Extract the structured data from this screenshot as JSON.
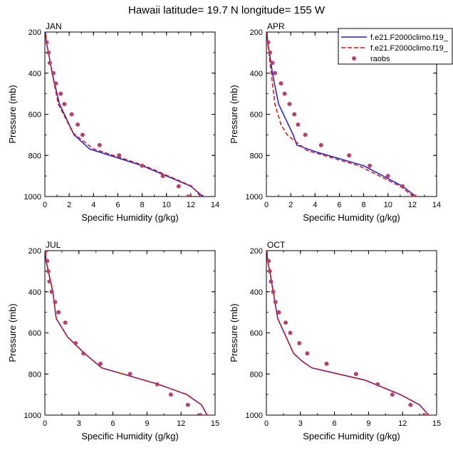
{
  "figure": {
    "title": "Hawaii  latitude= 19.7 N longitude= 155 W"
  },
  "chart_data": [
    {
      "type": "line",
      "title": "JAN",
      "xlabel": "Specific Humidity (g/kg)",
      "ylabel": "Pressure (mb)",
      "xlim": [
        0,
        14
      ],
      "ylim": [
        1000,
        200
      ],
      "y_reversed": true,
      "xticks": [
        "0",
        "2",
        "4",
        "6",
        "8",
        "10",
        "12",
        "14"
      ],
      "yticks": [
        "200",
        "400",
        "600",
        "800",
        "1000"
      ],
      "series": [
        {
          "name": "f.e21.F2000climo.f19_",
          "style": "solid",
          "color": "#1f1fd6",
          "x": [
            13,
            12,
            8,
            4,
            3.7,
            2.4,
            1.2,
            0.6,
            0.3,
            0.12,
            0.05
          ],
          "y": [
            1000,
            950,
            850,
            775,
            770,
            700,
            550,
            400,
            300,
            250,
            200
          ]
        },
        {
          "name": "f.e21.F2000climo.f19_",
          "style": "dashed",
          "color": "#e01010",
          "x": [
            12.8,
            12.1,
            8.2,
            4.1,
            3.9,
            2.3,
            1.1,
            0.6,
            0.3,
            0.12,
            0.05
          ],
          "y": [
            1000,
            950,
            850,
            770,
            765,
            690,
            550,
            400,
            300,
            250,
            200
          ]
        },
        {
          "name": "raobs",
          "style": "markers",
          "color": "#b8426b",
          "x": [
            11.8,
            11,
            9.7,
            8,
            6.1,
            4.5,
            3.1,
            2.7,
            2.2,
            1.6,
            1.3,
            0.9,
            0.7,
            0.4,
            0.3,
            0.15
          ],
          "y": [
            1000,
            950,
            900,
            850,
            800,
            750,
            700,
            650,
            600,
            550,
            500,
            450,
            400,
            350,
            300,
            250
          ]
        }
      ]
    },
    {
      "type": "line",
      "title": "APR",
      "xlabel": "Specific Humidity (g/kg)",
      "ylabel": "Pressure (mb)",
      "xlim": [
        0,
        14
      ],
      "ylim": [
        1000,
        200
      ],
      "y_reversed": true,
      "xticks": [
        "0",
        "2",
        "4",
        "6",
        "8",
        "10",
        "12",
        "14"
      ],
      "yticks": [
        "200",
        "400",
        "600",
        "800",
        "1000"
      ],
      "series": [
        {
          "name": "f.e21.F2000climo.f19_",
          "style": "solid",
          "color": "#1f1fd6",
          "x": [
            12.3,
            11.2,
            8,
            4.2,
            2.5,
            2.2,
            1,
            0.5,
            0.25,
            0.1,
            0.05
          ],
          "y": [
            1000,
            950,
            850,
            785,
            750,
            700,
            550,
            400,
            300,
            250,
            200
          ]
        },
        {
          "name": "f.e21.F2000climo.f19_",
          "style": "dashed",
          "color": "#e01010",
          "x": [
            12.1,
            11,
            7.6,
            3.3,
            1.7,
            1.2,
            0.7,
            0.4,
            0.2,
            0.1,
            0.05
          ],
          "y": [
            1000,
            950,
            850,
            775,
            700,
            650,
            550,
            400,
            300,
            250,
            200
          ]
        },
        {
          "name": "raobs",
          "style": "markers",
          "color": "#b8426b",
          "x": [
            12.2,
            11.2,
            10,
            8.5,
            6.8,
            4.5,
            3.2,
            2.6,
            2.3,
            1.9,
            1.5,
            1.2,
            0.7,
            0.5,
            0.3,
            0.15
          ],
          "y": [
            1000,
            950,
            900,
            850,
            800,
            750,
            700,
            650,
            600,
            550,
            500,
            450,
            400,
            350,
            300,
            250
          ]
        }
      ]
    },
    {
      "type": "line",
      "title": "JUL",
      "xlabel": "Specific Humidity (g/kg)",
      "ylabel": "Pressure (mb)",
      "xlim": [
        0,
        15
      ],
      "ylim": [
        1000,
        200
      ],
      "y_reversed": true,
      "xticks": [
        "0",
        "3",
        "6",
        "9",
        "12",
        "15"
      ],
      "yticks": [
        "200",
        "400",
        "600",
        "800",
        "1000"
      ],
      "series": [
        {
          "name": "f.e21.F2000climo.f19_",
          "style": "solid",
          "color": "#1f1fd6",
          "x": [
            14.3,
            13.8,
            12.5,
            10,
            5,
            3.5,
            2,
            1,
            0.7,
            0.3,
            0.1,
            0.05
          ],
          "y": [
            1000,
            950,
            900,
            850,
            770,
            700,
            620,
            530,
            400,
            300,
            250,
            200
          ]
        },
        {
          "name": "f.e21.F2000climo.f19_",
          "style": "dashed",
          "color": "#e01010",
          "x": [
            14.3,
            13.8,
            12.5,
            10,
            5,
            3.5,
            2,
            1,
            0.7,
            0.3,
            0.1,
            0.05
          ],
          "y": [
            1000,
            950,
            900,
            850,
            770,
            700,
            620,
            530,
            400,
            300,
            250,
            200
          ]
        },
        {
          "name": "raobs",
          "style": "markers",
          "color": "#b8426b",
          "x": [
            13.7,
            12.6,
            11.1,
            9.9,
            7.5,
            4.9,
            3.4,
            2.7,
            1.8,
            1.2,
            0.9,
            0.6,
            0.4,
            0.3,
            0.2,
            0.1
          ],
          "y": [
            1000,
            950,
            900,
            850,
            800,
            750,
            700,
            650,
            550,
            500,
            450,
            400,
            350,
            300,
            250,
            200
          ]
        }
      ]
    },
    {
      "type": "line",
      "title": "OCT",
      "xlabel": "Specific Humidity (g/kg)",
      "ylabel": "Pressure (mb)",
      "xlim": [
        0,
        15
      ],
      "ylim": [
        1000,
        200
      ],
      "y_reversed": true,
      "xticks": [
        "0",
        "3",
        "6",
        "9",
        "12",
        "15"
      ],
      "yticks": [
        "200",
        "400",
        "600",
        "800",
        "1000"
      ],
      "series": [
        {
          "name": "f.e21.F2000climo.f19_",
          "style": "solid",
          "color": "#1f1fd6",
          "x": [
            14.3,
            13.5,
            11.8,
            8.7,
            4,
            3.2,
            2.4,
            1,
            0.6,
            0.3,
            0.1,
            0.05
          ],
          "y": [
            1000,
            950,
            900,
            830,
            770,
            740,
            700,
            530,
            400,
            300,
            250,
            200
          ]
        },
        {
          "name": "f.e21.F2000climo.f19_",
          "style": "dashed",
          "color": "#e01010",
          "x": [
            14.3,
            13.5,
            11.8,
            8.7,
            4,
            3.2,
            2.4,
            1,
            0.6,
            0.3,
            0.1,
            0.05
          ],
          "y": [
            1000,
            950,
            900,
            830,
            770,
            740,
            700,
            530,
            400,
            300,
            250,
            200
          ]
        },
        {
          "name": "raobs",
          "style": "markers",
          "color": "#b8426b",
          "x": [
            13.9,
            12.7,
            11.1,
            9.8,
            7.9,
            5.3,
            3.6,
            2.9,
            2.1,
            1.7,
            1.1,
            0.8,
            0.6,
            0.4,
            0.3,
            0.2
          ],
          "y": [
            1000,
            950,
            900,
            850,
            800,
            750,
            700,
            650,
            600,
            550,
            500,
            450,
            400,
            350,
            300,
            250
          ]
        }
      ]
    }
  ],
  "legend": {
    "entries": [
      {
        "label": "f.e21.F2000climo.f19_",
        "style": "solid",
        "color": "#1f1fd6"
      },
      {
        "label": "f.e21.F2000climo.f19_",
        "style": "dashed",
        "color": "#e01010"
      },
      {
        "label": "raobs",
        "style": "markers",
        "color": "#b8426b"
      }
    ]
  }
}
